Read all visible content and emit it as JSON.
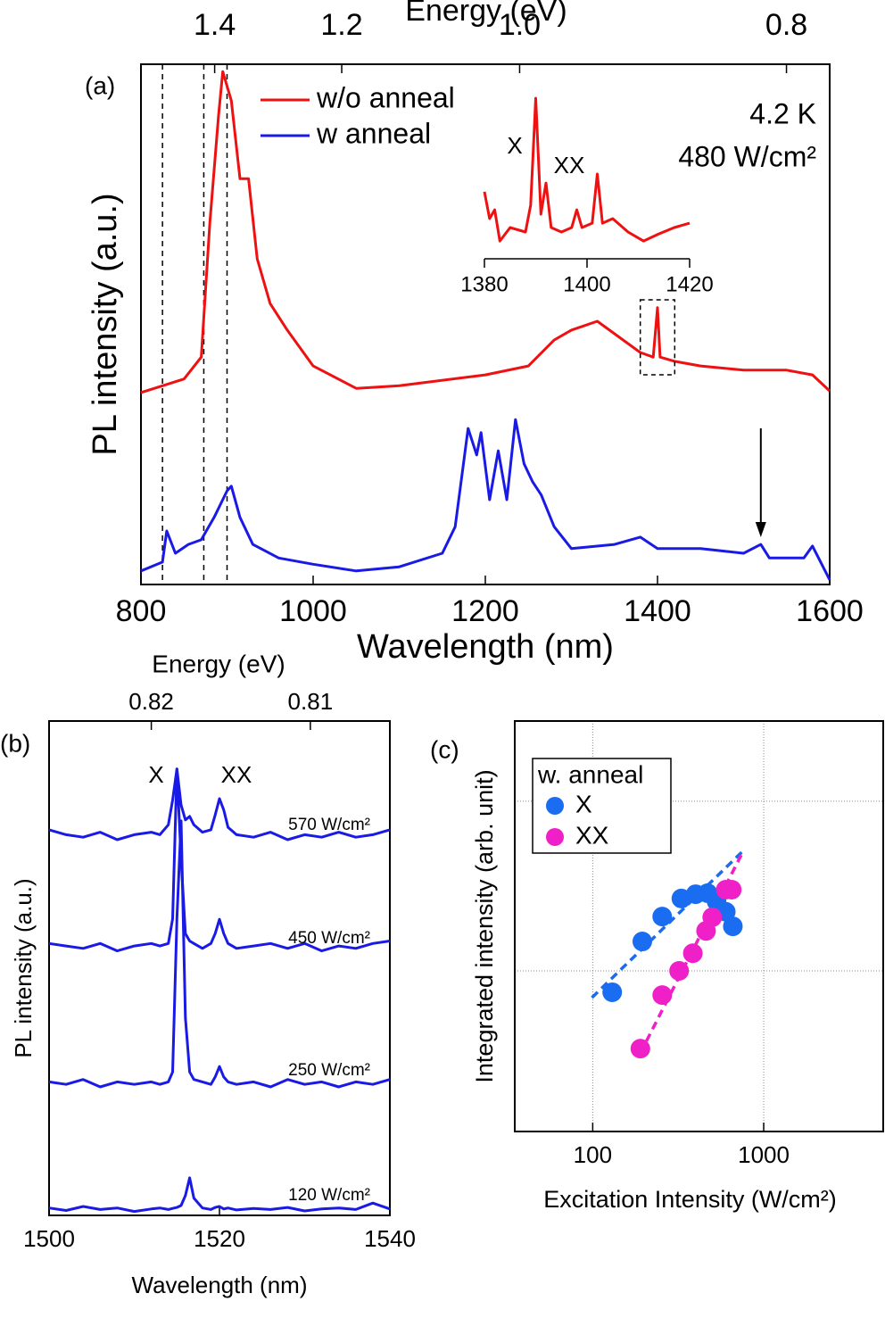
{
  "chart_data": [
    {
      "type": "line",
      "panel_label": "(a)",
      "top_axis_label": "Energy (eV)",
      "xlabel": "Wavelength (nm)",
      "ylabel": "PL intensity (a.u.)",
      "xlim": [
        800,
        1600
      ],
      "xticks": [
        800,
        1000,
        1200,
        1400,
        1600
      ],
      "ylim": [
        0,
        100
      ],
      "top_ticks": [
        1.4,
        1.2,
        {
          "value": 1.0,
          "label": "1.0"
        },
        0.8
      ],
      "annotations": [
        "4.2 K",
        "480 W/cm²"
      ],
      "reference_lines": [
        825,
        873,
        900
      ],
      "arrow_x": 1520,
      "series": [
        {
          "name": "w/o anneal",
          "color": "#ee1111",
          "x": [
            800,
            850,
            870,
            880,
            890,
            895,
            905,
            915,
            925,
            935,
            950,
            970,
            1000,
            1050,
            1100,
            1200,
            1250,
            1280,
            1300,
            1330,
            1360,
            1380,
            1395,
            1400,
            1403,
            1420,
            1450,
            1500,
            1550,
            1580,
            1600
          ],
          "values": [
            36.9,
            39.5,
            43.7,
            69.5,
            90,
            98.6,
            93,
            78,
            78,
            62.6,
            54,
            48.9,
            42,
            37.7,
            38.2,
            40.3,
            42,
            47,
            48.9,
            50.6,
            47,
            44.6,
            43.7,
            53.2,
            43.7,
            42.9,
            42,
            41.2,
            41.2,
            40.3,
            37.2
          ]
        },
        {
          "name": "w anneal",
          "color": "#1a1ae6",
          "x": [
            800,
            825,
            830,
            840,
            855,
            870,
            885,
            900,
            905,
            915,
            930,
            960,
            1000,
            1050,
            1100,
            1150,
            1165,
            1180,
            1190,
            1195,
            1205,
            1215,
            1225,
            1235,
            1245,
            1255,
            1265,
            1280,
            1300,
            1350,
            1380,
            1400,
            1450,
            1500,
            1520,
            1530,
            1570,
            1580,
            1600
          ],
          "values": [
            2.6,
            4.3,
            10.3,
            6,
            7.7,
            8.6,
            12.9,
            18,
            18.9,
            12.9,
            7.7,
            5.1,
            3.9,
            2.6,
            3.4,
            6,
            11.1,
            30,
            24.9,
            29.2,
            16.3,
            25.7,
            16.3,
            31.7,
            23.2,
            19.7,
            17.2,
            11.1,
            6.9,
            7.7,
            9.1,
            6.9,
            6.9,
            6,
            7.7,
            5.1,
            5.1,
            7.4,
            0.9
          ]
        }
      ]
    },
    {
      "type": "line",
      "xlim": [
        1380,
        1420
      ],
      "xticks": [
        1380,
        1400,
        1420
      ],
      "ylim": [
        0,
        100
      ],
      "annotations": [
        "X",
        "XX"
      ],
      "series": [
        {
          "color": "#ee1111",
          "x": [
            1380,
            1381,
            1382,
            1383,
            1385,
            1388,
            1389,
            1390,
            1391,
            1392,
            1393,
            1395,
            1397,
            1398,
            1399,
            1401,
            1402,
            1403,
            1405,
            1408,
            1411,
            1414,
            1417,
            1420
          ],
          "values": [
            39.5,
            23.7,
            28.9,
            10.5,
            18.4,
            15.8,
            31.6,
            94.7,
            26.3,
            44.7,
            18.4,
            15.8,
            18.4,
            28.9,
            18.4,
            21,
            50,
            21,
            23.7,
            15.8,
            10.5,
            14.7,
            18.4,
            21
          ]
        }
      ]
    },
    {
      "type": "line",
      "panel_label": "(b)",
      "top_axis_label": "Energy (eV)",
      "xlabel": "Wavelength (nm)",
      "ylabel": "PL intensity (a.u.)",
      "xlim": [
        1500,
        1540
      ],
      "xticks": [
        1500,
        1520,
        1540
      ],
      "ylim": [
        0,
        100
      ],
      "top_ticks": [
        0.82,
        0.81
      ],
      "annotations": [
        "X",
        "XX"
      ],
      "x": [
        1500,
        1502,
        1504,
        1506,
        1508,
        1510,
        1512,
        1513,
        1514,
        1514.5,
        1515,
        1515.5,
        1516,
        1516.5,
        1517,
        1518,
        1519,
        1519.5,
        1520,
        1520.5,
        1521,
        1522,
        1524,
        1526,
        1528,
        1530,
        1532,
        1534,
        1536,
        1538,
        1540
      ],
      "series": [
        {
          "name": "570 W/cm²",
          "color": "#1a1ae6",
          "values": [
            78,
            77,
            76.5,
            77.5,
            76,
            77,
            77.5,
            77,
            79,
            84,
            90.3,
            83,
            80,
            80.7,
            79,
            77.5,
            78,
            81,
            84.3,
            82,
            78.5,
            77,
            76.5,
            77.5,
            76,
            77,
            76.5,
            77.5,
            76.5,
            77,
            78
          ]
        },
        {
          "name": "450 W/cm²",
          "color": "#1a1ae6",
          "values": [
            55,
            54.5,
            54,
            55,
            53.5,
            54.5,
            55,
            54.5,
            55,
            60,
            90.3,
            72,
            57,
            55.5,
            55,
            54,
            55,
            57,
            59.9,
            57,
            55,
            54,
            54.5,
            55,
            54,
            55,
            53.5,
            54.5,
            54,
            55,
            55.5
          ]
        },
        {
          "name": "250 W/cm²",
          "color": "#1a1ae6",
          "values": [
            27,
            26.5,
            27.5,
            26,
            27,
            26.5,
            27,
            26.5,
            27,
            29,
            60,
            79.8,
            40,
            29,
            27.5,
            27,
            26.5,
            28,
            30.1,
            28,
            27,
            26.5,
            27,
            26,
            27.5,
            26.5,
            27,
            26,
            27,
            26.5,
            27.5
          ]
        },
        {
          "name": "120 W/cm²",
          "color": "#1a1ae6",
          "values": [
            1.5,
            1,
            1.8,
            1.2,
            1.5,
            0.8,
            1.3,
            1.5,
            1.2,
            1.4,
            1.6,
            2,
            4,
            7.6,
            3.5,
            1.5,
            1.2,
            1.6,
            1.8,
            1.3,
            1.5,
            1.1,
            1.4,
            1.2,
            1.6,
            0.9,
            1.3,
            1.5,
            1.2,
            2.5,
            1.3
          ]
        }
      ]
    },
    {
      "type": "scatter",
      "panel_label": "(c)",
      "xlabel": "Excitation Intensity (W/cm²)",
      "ylabel": "Integrated intensity (arb. unit)",
      "xscale": "log",
      "yscale": "log",
      "xlim": [
        35,
        5000
      ],
      "xticks": [
        100,
        1000
      ],
      "ylim": [
        0.113,
        29.7
      ],
      "ygrid": [
        1,
        10
      ],
      "grid": true,
      "legend_title": "w.  anneal",
      "series": [
        {
          "name": "X",
          "color": "#1a6cf0",
          "x": [
            130,
            195,
            255,
            330,
            400,
            470,
            530,
            600,
            660
          ],
          "values": [
            0.748,
            1.49,
            2.09,
            2.67,
            2.83,
            2.87,
            2.57,
            2.23,
            1.83
          ]
        },
        {
          "name": "XX",
          "color": "#f020c8",
          "x": [
            190,
            255,
            320,
            385,
            460,
            500,
            600,
            650
          ],
          "values": [
            0.348,
            0.72,
            1,
            1.27,
            1.72,
            2.07,
            3.01,
            3.01
          ]
        }
      ],
      "fit_lines": [
        {
          "color": "#1a6cf0",
          "x": [
            98.9,
            743
          ],
          "values": [
            0.695,
            5.0
          ]
        },
        {
          "color": "#f020c8",
          "x": [
            190,
            740
          ],
          "values": [
            0.328,
            4.83
          ]
        }
      ]
    }
  ]
}
